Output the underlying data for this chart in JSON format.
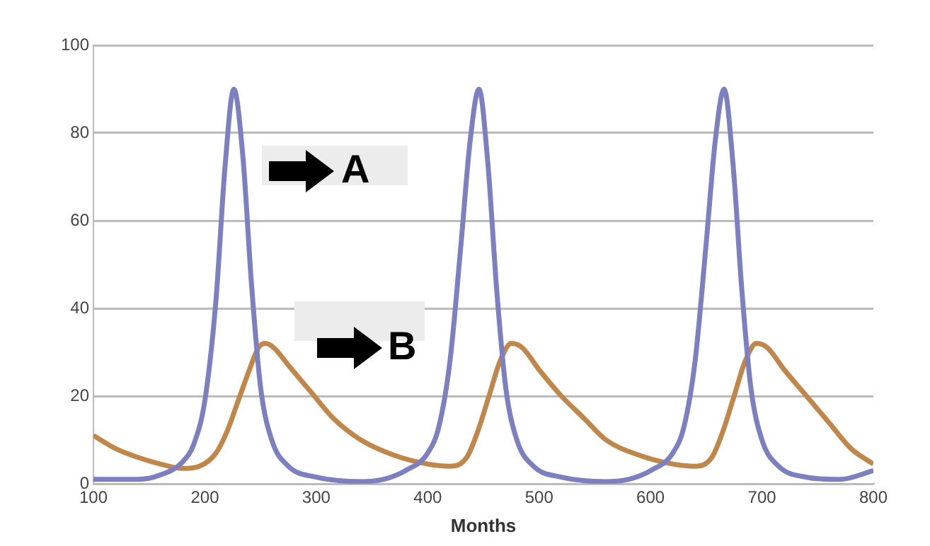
{
  "chart_data": {
    "type": "line",
    "xlabel": "Months",
    "xlim": [
      100,
      800
    ],
    "xticks": [
      100,
      200,
      300,
      400,
      500,
      600,
      700,
      800
    ],
    "ylim": [
      0,
      100
    ],
    "yticks": [
      0,
      20,
      40,
      60,
      80,
      100
    ],
    "grid": "y",
    "legend": false,
    "marker": "none",
    "line_style": "solid",
    "annotations": [
      "A",
      "B"
    ],
    "series": [
      {
        "color": "#7d80c0",
        "x": [
          100,
          140,
          160,
          180,
          190,
          200,
          210,
          218,
          226,
          234,
          242,
          250,
          260,
          275,
          300,
          340,
          360,
          380,
          400,
          410,
          420,
          430,
          438,
          446,
          454,
          462,
          470,
          480,
          495,
          520,
          560,
          580,
          600,
          620,
          630,
          640,
          650,
          658,
          666,
          674,
          682,
          690,
          700,
          715,
          740,
          770,
          800
        ],
        "values": [
          1,
          1,
          2,
          5,
          9,
          19,
          42,
          72,
          90,
          75,
          45,
          22,
          10,
          4,
          1.5,
          0.5,
          1,
          3,
          7,
          13,
          28,
          55,
          78,
          90,
          73,
          44,
          22,
          10,
          4,
          1.5,
          0.5,
          1,
          3,
          7,
          13,
          28,
          55,
          78,
          90,
          73,
          44,
          22,
          10,
          4,
          1.5,
          1,
          3
        ]
      },
      {
        "color": "#c0864a",
        "x": [
          100,
          120,
          140,
          160,
          180,
          195,
          210,
          220,
          230,
          240,
          248,
          254,
          262,
          275,
          295,
          315,
          340,
          370,
          400,
          420,
          435,
          445,
          455,
          465,
          475,
          485,
          500,
          520,
          540,
          560,
          590,
          620,
          640,
          655,
          665,
          675,
          685,
          695,
          705,
          720,
          740,
          760,
          780,
          800
        ],
        "values": [
          11,
          8,
          6,
          4.5,
          3.5,
          4,
          7,
          12,
          19,
          26,
          31,
          32,
          31,
          27,
          21,
          15,
          10,
          6.5,
          4.5,
          4,
          6,
          12,
          20,
          28,
          32,
          31,
          26,
          20,
          15,
          10,
          6.5,
          4.5,
          4,
          6,
          12,
          20,
          28,
          32,
          31,
          26,
          20,
          14,
          8,
          4.5
        ]
      }
    ]
  }
}
